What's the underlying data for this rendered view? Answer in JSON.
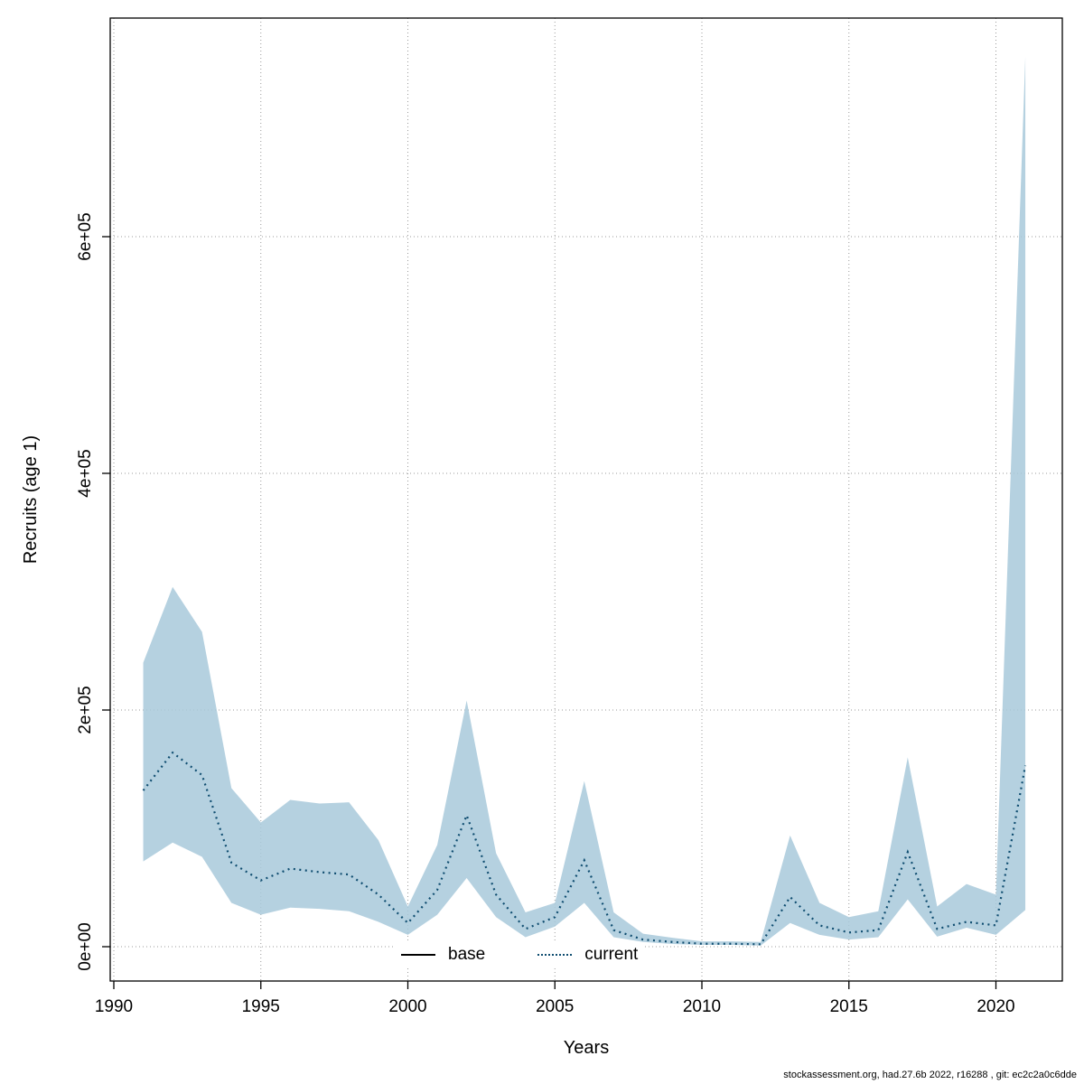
{
  "chart_data": {
    "type": "line",
    "title": "",
    "xlabel": "Years",
    "ylabel": "Recruits (age 1)",
    "x_ticks": [
      1990,
      1995,
      2000,
      2005,
      2010,
      2015,
      2020
    ],
    "y_ticks": [
      0,
      200000,
      400000,
      600000
    ],
    "y_tick_labels": [
      "0e+00",
      "2e+05",
      "4e+05",
      "6e+05"
    ],
    "xlim": [
      1989.8,
      2022.2
    ],
    "ylim": [
      0,
      780000
    ],
    "grid": true,
    "x": [
      1991,
      1992,
      1993,
      1994,
      1995,
      1996,
      1997,
      1998,
      1999,
      2000,
      2001,
      2002,
      2003,
      2004,
      2005,
      2006,
      2007,
      2008,
      2009,
      2010,
      2011,
      2012,
      2013,
      2014,
      2015,
      2016,
      2017,
      2018,
      2019,
      2020,
      2021
    ],
    "series": [
      {
        "name": "current",
        "style": "dotted",
        "color": "#0F4D70",
        "band_color": "#A8C9DB",
        "values": [
          132000,
          164000,
          145000,
          71000,
          56000,
          66000,
          63000,
          61000,
          44000,
          20000,
          48000,
          111000,
          44000,
          15000,
          25000,
          73000,
          14000,
          6000,
          4000,
          2500,
          2500,
          2000,
          42000,
          18000,
          12000,
          14000,
          80000,
          15000,
          21000,
          18000,
          153000
        ],
        "ci_upper": [
          240000,
          304000,
          266000,
          134000,
          105000,
          124000,
          121000,
          122000,
          90000,
          34000,
          86000,
          208000,
          79000,
          29000,
          37000,
          140000,
          29000,
          11000,
          7500,
          4500,
          4500,
          4000,
          94000,
          37000,
          25000,
          30000,
          160000,
          34000,
          53000,
          44000,
          752000
        ],
        "ci_lower": [
          72000,
          88000,
          76000,
          37000,
          27000,
          33000,
          32000,
          30000,
          21000,
          10000,
          27000,
          58000,
          25000,
          8000,
          17000,
          37000,
          8000,
          4000,
          2300,
          1500,
          1500,
          1000,
          20000,
          10000,
          6000,
          8000,
          40000,
          8500,
          16000,
          10000,
          31000
        ]
      },
      {
        "name": "base",
        "style": "solid",
        "color": "#000000"
      }
    ],
    "legend_position": "bottom-center-inside",
    "legend": [
      {
        "label": "base",
        "line": "solid",
        "color": "#000000"
      },
      {
        "label": "current",
        "line": "dotted",
        "color": "#0F4D70"
      }
    ]
  },
  "footer": {
    "text": "stockassessment.org, had.27.6b 2022, r16288 , git: ec2c2a0c6dde"
  }
}
